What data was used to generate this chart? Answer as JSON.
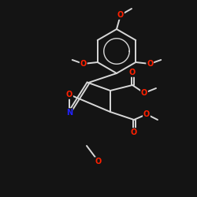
{
  "background_color": "#141414",
  "bond_color": "#d8d8d8",
  "atom_colors": {
    "O": "#ff2000",
    "N": "#2222ff"
  },
  "figsize": [
    2.5,
    2.5
  ],
  "dpi": 100
}
